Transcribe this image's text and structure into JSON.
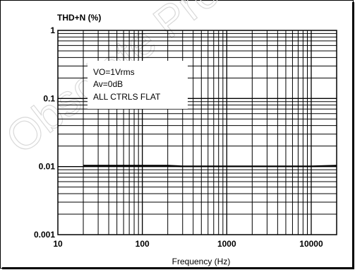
{
  "chart_data": {
    "type": "line",
    "ylabel": "THD+N (%)",
    "xlabel": "Frequency (Hz)",
    "x_scale": "log",
    "y_scale": "log",
    "xlim": [
      10,
      20000
    ],
    "ylim": [
      0.001,
      1
    ],
    "x_ticks": [
      "10",
      "100",
      "1000",
      "10000"
    ],
    "y_ticks": [
      "1",
      "0.1",
      "0.01",
      "0.001"
    ],
    "grid": true,
    "annotation": [
      "VO=1Vrms",
      "Av=0dB",
      "ALL CTRLS FLAT"
    ],
    "series": [
      {
        "x": [
          20,
          50,
          100,
          200,
          300,
          500,
          1000,
          2000,
          5000,
          10000,
          20000
        ],
        "y": [
          0.0103,
          0.0103,
          0.0103,
          0.0103,
          0.0101,
          0.0101,
          0.0101,
          0.0101,
          0.0101,
          0.0101,
          0.0103
        ]
      }
    ]
  },
  "watermark": "Obsolete Product"
}
